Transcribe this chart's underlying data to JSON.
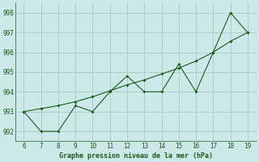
{
  "x": [
    6,
    7,
    8,
    9,
    10,
    11,
    12,
    13,
    14,
    15,
    16,
    17,
    18,
    19
  ],
  "y_data": [
    993,
    992,
    992,
    993.3,
    993,
    994,
    994.8,
    994,
    994,
    995.4,
    994,
    996,
    998,
    997
  ],
  "y_trend": [
    993,
    993.15,
    993.3,
    993.5,
    993.75,
    994.05,
    994.35,
    994.6,
    994.9,
    995.2,
    995.55,
    996.0,
    996.55,
    997.0
  ],
  "line_color": "#1a5c1a",
  "bg_color": "#cce8e8",
  "grid_color": "#aacece",
  "xlabel": "Graphe pression niveau de la mer (hPa)",
  "xlim": [
    5.5,
    19.5
  ],
  "ylim": [
    991.5,
    998.5
  ],
  "yticks": [
    992,
    993,
    994,
    995,
    996,
    997,
    998
  ],
  "xticks": [
    6,
    7,
    8,
    9,
    10,
    11,
    12,
    13,
    14,
    15,
    16,
    17,
    18,
    19
  ],
  "tick_fontsize": 5.5,
  "xlabel_fontsize": 6.0
}
